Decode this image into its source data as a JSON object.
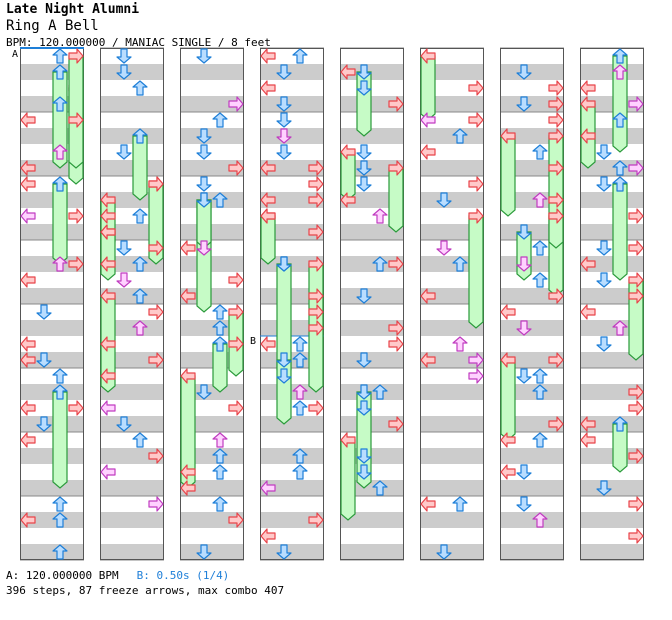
{
  "song": {
    "artist": "Late Night Alumni",
    "title": "Ring A Bell",
    "meta": "BPM: 120.000000 / MANIAC SINGLE / 8 feet"
  },
  "markers": {
    "a": "A",
    "b": "B"
  },
  "legend": {
    "a": "A: 120.000000 BPM",
    "b": "B: 0.50s (1/4)"
  },
  "summary": "396 steps, 87 freeze arrows, max combo 407",
  "colors": {
    "band": "#cccccc",
    "red_fill": "#ffc9c9",
    "red_stroke": "#e8444a",
    "blue_fill": "#b9ddff",
    "blue_stroke": "#1e7fd8",
    "pink_fill": "#ffd2ff",
    "pink_stroke": "#c03cc0",
    "freeze_fill": "#c6fbc6",
    "freeze_stroke": "#2a9a3a"
  },
  "chart_data": {
    "type": "step-chart",
    "columns": 8,
    "measures_per_column": 8,
    "lanes": [
      "left",
      "down",
      "up",
      "right"
    ]
  }
}
